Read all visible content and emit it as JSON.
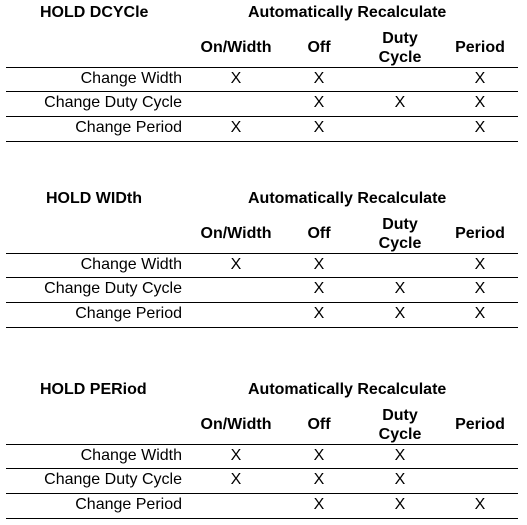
{
  "columns": [
    "On/Width",
    "Off",
    "Duty\nCycle",
    "Period"
  ],
  "recalc_heading": "Automatically Recalculate",
  "mark_symbol": "X",
  "tables": [
    {
      "title": "HOLD DCYCle",
      "rows": [
        {
          "label": "Change Width",
          "marks": [
            true,
            true,
            false,
            true
          ]
        },
        {
          "label": "Change Duty Cycle",
          "marks": [
            false,
            true,
            true,
            true
          ]
        },
        {
          "label": "Change Period",
          "marks": [
            true,
            true,
            false,
            true
          ]
        }
      ]
    },
    {
      "title": "HOLD WIDth",
      "rows": [
        {
          "label": "Change Width",
          "marks": [
            true,
            true,
            false,
            true
          ]
        },
        {
          "label": "Change Duty Cycle",
          "marks": [
            false,
            true,
            true,
            true
          ]
        },
        {
          "label": "Change Period",
          "marks": [
            false,
            true,
            true,
            true
          ]
        }
      ]
    },
    {
      "title": "HOLD PERiod",
      "rows": [
        {
          "label": "Change Width",
          "marks": [
            true,
            true,
            true,
            false
          ]
        },
        {
          "label": "Change Duty Cycle",
          "marks": [
            true,
            true,
            true,
            false
          ]
        },
        {
          "label": "Change Period",
          "marks": [
            false,
            true,
            true,
            true
          ]
        }
      ]
    }
  ]
}
